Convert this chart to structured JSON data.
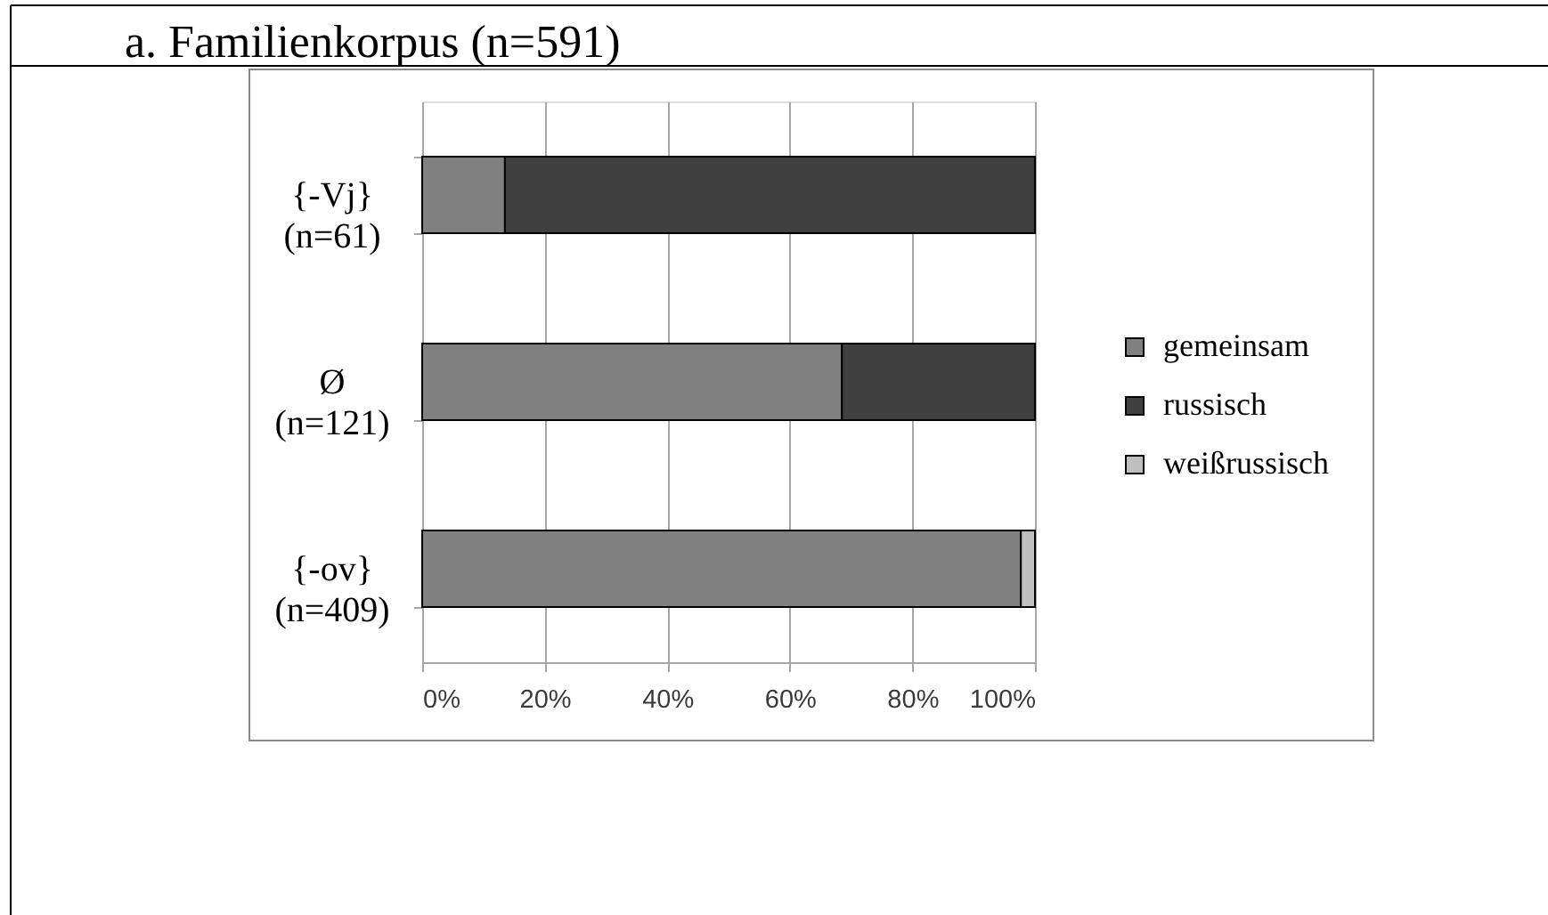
{
  "chart_data": {
    "type": "bar",
    "orientation": "horizontal",
    "stacked": true,
    "title": "a. Familienkorpus (n=591)",
    "categories": [
      "{-Vj}\n(n=61)",
      "Ø\n(n=121)",
      "{-ov}\n(n=409)"
    ],
    "series": [
      {
        "name": "gemeinsam",
        "color": "#808080",
        "values": [
          13.5,
          68.5,
          97.7
        ]
      },
      {
        "name": "russisch",
        "color": "#404040",
        "values": [
          86.5,
          31.5,
          null
        ]
      },
      {
        "name": "weißrussisch",
        "color": "#bfbfbf",
        "values": [
          null,
          null,
          2.3
        ]
      }
    ],
    "xlim": [
      0,
      100
    ],
    "xticks": [
      {
        "value": 0,
        "label": "0%"
      },
      {
        "value": 20,
        "label": "20%"
      },
      {
        "value": 40,
        "label": "40%"
      },
      {
        "value": 60,
        "label": "60%"
      },
      {
        "value": 80,
        "label": "80%"
      },
      {
        "value": 100,
        "label": "100%"
      }
    ],
    "grid": "x",
    "legend": "right"
  }
}
